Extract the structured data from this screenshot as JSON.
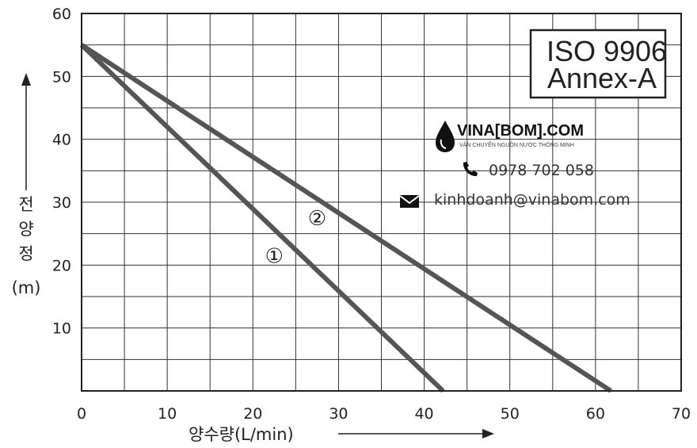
{
  "chart_data": {
    "type": "line",
    "xlabel": "양수량(L/min)",
    "ylabel_chars": [
      "전",
      "양",
      "정"
    ],
    "ylabel_unit": "(m)",
    "xlim": [
      0,
      70
    ],
    "ylim": [
      0,
      60
    ],
    "xticks": [
      0,
      10,
      20,
      30,
      40,
      50,
      60,
      70
    ],
    "yticks": [
      10,
      20,
      30,
      40,
      50,
      60
    ],
    "grid": true,
    "series": [
      {
        "label": "①",
        "x": [
          0,
          42.2
        ],
        "y": [
          55,
          0
        ],
        "label_at": [
          22.5,
          21.5
        ]
      },
      {
        "label": "②",
        "x": [
          0,
          61.8
        ],
        "y": [
          55,
          0
        ],
        "label_at": [
          27.5,
          27.5
        ]
      }
    ]
  },
  "badge": {
    "line1": "ISO 9906",
    "line2": "Annex-A"
  },
  "watermark": {
    "brand": "VINA[BOM].COM",
    "tagline": "VẬN CHUYỂN NGUỒN NƯỚC THÔNG MINH",
    "phone": "0978 702 058",
    "email": "kinhdoanh@vinabom.com",
    "icons": [
      "water-drop-logo",
      "phone-icon",
      "envelope-icon"
    ]
  }
}
